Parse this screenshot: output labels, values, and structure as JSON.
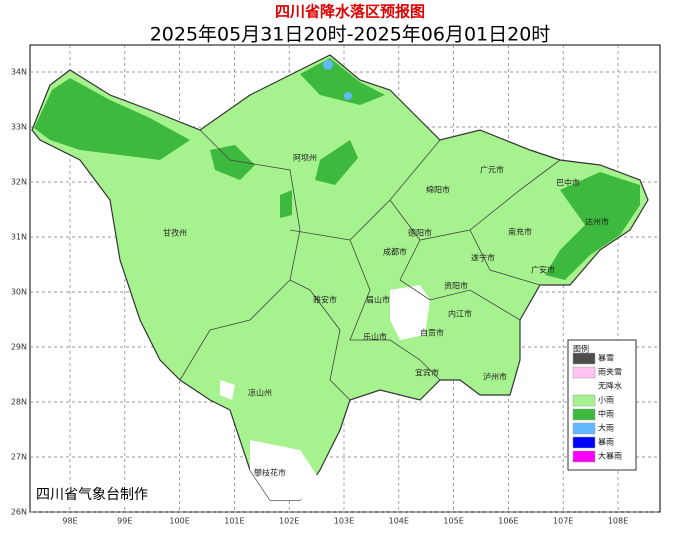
{
  "title": "四川省降水落区预报图",
  "subtitle": "2025年05月31日20时-2025年06月01日20时",
  "credit": "四川省气象台制作",
  "lon_ticks": [
    {
      "value": 98,
      "label": "98E"
    },
    {
      "value": 99,
      "label": "99E"
    },
    {
      "value": 100,
      "label": "100E"
    },
    {
      "value": 101,
      "label": "101E"
    },
    {
      "value": 102,
      "label": "102E"
    },
    {
      "value": 103,
      "label": "103E"
    },
    {
      "value": 104,
      "label": "104E"
    },
    {
      "value": 105,
      "label": "105E"
    },
    {
      "value": 106,
      "label": "106E"
    },
    {
      "value": 107,
      "label": "107E"
    },
    {
      "value": 108,
      "label": "108E"
    }
  ],
  "lat_ticks": [
    {
      "value": 34,
      "label": "34N"
    },
    {
      "value": 33,
      "label": "33N"
    },
    {
      "value": 32,
      "label": "32N"
    },
    {
      "value": 31,
      "label": "31N"
    },
    {
      "value": 30,
      "label": "30N"
    },
    {
      "value": 29,
      "label": "29N"
    },
    {
      "value": 28,
      "label": "28N"
    },
    {
      "value": 27,
      "label": "27N"
    },
    {
      "value": 26,
      "label": "26N"
    }
  ],
  "cities": [
    "阿坝州",
    "绵阳市",
    "广元市",
    "巴中市",
    "达州市",
    "南充市",
    "德阳市",
    "甘孜州",
    "成都市",
    "遂宁市",
    "广安市",
    "资阳市",
    "雅安市",
    "眉山市",
    "内江市",
    "乐山市",
    "自贡市",
    "宜宾市",
    "泸州市",
    "凉山州",
    "攀枝花市"
  ],
  "legend": {
    "title": "图例",
    "items": [
      {
        "label": "暴雪",
        "color": "#4d4d4d"
      },
      {
        "label": "雨夹雪",
        "color": "#ffc4f2"
      },
      {
        "label": "无降水",
        "color": "#ffffff"
      },
      {
        "label": "小雨",
        "color": "#a6f28f"
      },
      {
        "label": "中雨",
        "color": "#3dba3d"
      },
      {
        "label": "大雨",
        "color": "#61b8ff"
      },
      {
        "label": "暴雨",
        "color": "#0000fe"
      },
      {
        "label": "大暴雨",
        "color": "#fa00fa"
      }
    ]
  }
}
